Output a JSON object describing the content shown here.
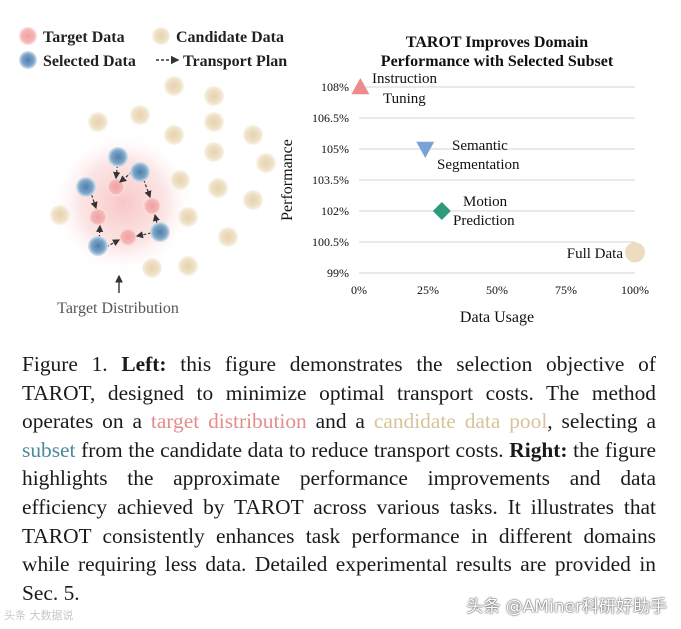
{
  "left_panel": {
    "legend": {
      "target": "Target Data",
      "candidate": "Candidate Data",
      "selected": "Selected Data",
      "transport": "Transport Plan"
    },
    "bottom_label": "Target Distribution",
    "colors": {
      "target": "#f2a0a0",
      "candidate": "#ecdcc0",
      "selected": "#5b8fb8",
      "glow": "#fbdada"
    }
  },
  "chart_data": {
    "type": "scatter",
    "title": "TAROT Improves Domain Performance with Selected Subset",
    "title_lines": [
      "TAROT Improves Domain",
      "Performance with Selected Subset"
    ],
    "xlabel": "Data Usage",
    "ylabel": "Performance",
    "xlim": [
      0,
      100
    ],
    "ylim": [
      99,
      108
    ],
    "x_ticks": [
      0,
      25,
      50,
      75,
      100
    ],
    "x_tick_labels": [
      "0%",
      "25%",
      "50%",
      "75%",
      "100%"
    ],
    "y_ticks": [
      99,
      100.5,
      102,
      103.5,
      105,
      106.5,
      108
    ],
    "y_tick_labels": [
      "99%",
      "100.5%",
      "102%",
      "103.5%",
      "105%",
      "106.5%",
      "108%"
    ],
    "grid": "horizontal",
    "points": [
      {
        "label_lines": [
          "Instruction",
          "Tuning"
        ],
        "x": 0.5,
        "y": 108,
        "marker": "triangle-up",
        "color": "#ef8a8a"
      },
      {
        "label_lines": [
          "Semantic",
          "Segmentation"
        ],
        "x": 24,
        "y": 105,
        "marker": "triangle-down",
        "color": "#7aa2d6"
      },
      {
        "label_lines": [
          "Motion",
          "Prediction"
        ],
        "x": 30,
        "y": 102,
        "marker": "diamond",
        "color": "#2e9a7a"
      },
      {
        "label_lines": [
          "Full Data"
        ],
        "x": 100,
        "y": 100,
        "marker": "circle",
        "color": "#ecdcc0"
      }
    ]
  },
  "caption": {
    "prefix": "Figure 1. ",
    "left_bold": "Left:",
    "left_text_1": " this figure demonstrates the selection objective of TAROT, designed to minimize optimal transport costs. The method operates on a ",
    "target_phrase": "target distribution",
    "left_text_2": " and a ",
    "candidate_phrase": "candidate data pool",
    "left_text_3": ", selecting a ",
    "subset_phrase": "subset",
    "left_text_4": " from the candidate data to reduce transport costs. ",
    "right_bold": "Right:",
    "right_text": " the figure highlights the approximate performance improvements and data efficiency achieved by TAROT across various tasks. It illustrates that TAROT consistently enhances task performance in different domains while requiring less data. Detailed experimental results are provided in Sec. 5."
  },
  "watermark": {
    "left": "头条 大数据说",
    "right": "头条 @AMiner科研好助手"
  }
}
